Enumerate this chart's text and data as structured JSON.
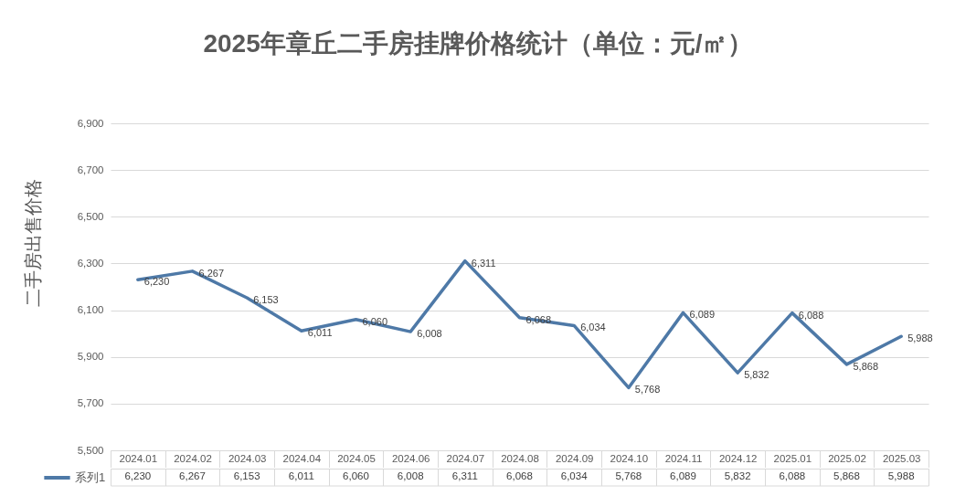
{
  "chart_data": {
    "type": "line",
    "title": "2025年章丘二手房挂牌价格统计（单位：元/㎡）",
    "ylabel": "二手房出售价格",
    "categories": [
      "2024.01",
      "2024.02",
      "2024.03",
      "2024.04",
      "2024.05",
      "2024.06",
      "2024.07",
      "2024.08",
      "2024.09",
      "2024.10",
      "2024.11",
      "2024.12",
      "2025.01",
      "2025.02",
      "2025.03"
    ],
    "series": [
      {
        "name": "系列1",
        "color": "#4e79a7",
        "values": [
          6230,
          6267,
          6153,
          6011,
          6060,
          6008,
          6311,
          6068,
          6034,
          5768,
          6089,
          5832,
          6088,
          5868,
          5988
        ],
        "value_labels": [
          "6,230",
          "6,267",
          "6,153",
          "6,011",
          "6,060",
          "6,008",
          "6,311",
          "6,068",
          "6,034",
          "5,768",
          "6,089",
          "5,832",
          "6,088",
          "5,868",
          "5,988"
        ]
      }
    ],
    "ylim": [
      5500,
      6900
    ],
    "yticks": [
      {
        "value": 5500,
        "label": "5,500"
      },
      {
        "value": 5700,
        "label": "5,700"
      },
      {
        "value": 5900,
        "label": "5,900"
      },
      {
        "value": 6100,
        "label": "6,100"
      },
      {
        "value": 6300,
        "label": "6,300"
      },
      {
        "value": 6500,
        "label": "6,500"
      },
      {
        "value": 6700,
        "label": "6,700"
      },
      {
        "value": 6900,
        "label": "6,900"
      }
    ],
    "grid": "y",
    "legend": "bottom left"
  }
}
